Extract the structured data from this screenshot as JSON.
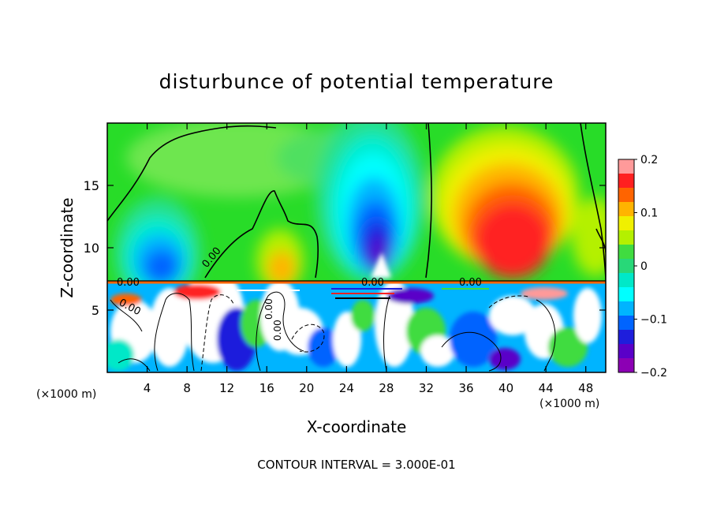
{
  "chart_data": {
    "type": "heatmap",
    "title": "disturbunce of potential temperature",
    "xlabel": "X-coordinate",
    "ylabel": "Z-coordinate",
    "x_unit": "(×1000 m)",
    "x_unit_right": "(×1000 m)",
    "xlim": [
      0,
      50
    ],
    "ylim": [
      0,
      20
    ],
    "x_ticks": [
      4,
      8,
      12,
      16,
      20,
      24,
      28,
      32,
      36,
      40,
      44,
      48
    ],
    "y_ticks": [
      5,
      10,
      15
    ],
    "colorbar": {
      "min": -0.2,
      "max": 0.2,
      "ticks": [
        "0.2",
        "0.1",
        "0",
        "−0.1",
        "−0.2"
      ],
      "colors": [
        "#ff9a9a",
        "#ff2020",
        "#ff6400",
        "#ffb400",
        "#f0f000",
        "#b4f000",
        "#40dc40",
        "#28d878",
        "#00e8c8",
        "#00ffff",
        "#00b4ff",
        "#0064ff",
        "#1e1edc",
        "#5a00c8",
        "#8c00b4"
      ]
    },
    "contour_labels": [
      "0.00",
      "0.00",
      "0.00",
      "0.00",
      "0.00",
      "0.00",
      "0.00"
    ],
    "footer": "CONTOUR INTERVAL = 3.000E-01"
  }
}
